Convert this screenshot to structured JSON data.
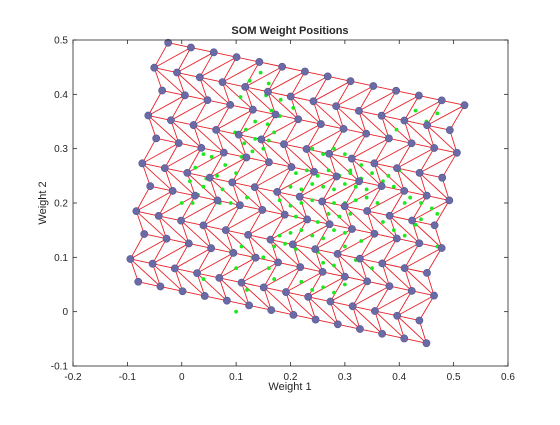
{
  "chart_data": {
    "type": "scatter",
    "title": "SOM Weight Positions",
    "xlabel": "Weight 1",
    "ylabel": "Weight 2",
    "xlim": [
      -0.2,
      0.6
    ],
    "ylim": [
      -0.1,
      0.5
    ],
    "xticks": [
      "-0.2",
      "-0.1",
      "0",
      "0.1",
      "0.2",
      "0.3",
      "0.4",
      "0.5",
      "0.6"
    ],
    "yticks": [
      "-0.1",
      "0",
      "0.1",
      "0.2",
      "0.3",
      "0.4",
      "0.5"
    ],
    "grid": false,
    "legend": "none",
    "neuron_grid": {
      "rows": 11,
      "cols": 14,
      "hex_offset_odd_rows": true,
      "corner_top_left": [
        -0.025,
        0.495
      ],
      "corner_top_right": [
        0.52,
        0.38
      ],
      "corner_bottom_left": [
        -0.08,
        0.055
      ],
      "corner_bottom_right": [
        0.45,
        -0.058
      ],
      "row_offset": [
        -0.02,
        -0.002
      ]
    },
    "series": [
      {
        "points": [
          [
            0.108,
            0.395
          ],
          [
            0.125,
            0.425
          ],
          [
            0.145,
            0.44
          ],
          [
            0.16,
            0.42
          ],
          [
            0.155,
            0.398
          ],
          [
            0.182,
            0.39
          ],
          [
            0.205,
            0.375
          ],
          [
            0.165,
            0.37
          ],
          [
            0.098,
            0.33
          ],
          [
            0.118,
            0.335
          ],
          [
            0.135,
            0.318
          ],
          [
            0.115,
            0.31
          ],
          [
            0.16,
            0.315
          ],
          [
            0.158,
            0.345
          ],
          [
            0.17,
            0.33
          ],
          [
            0.18,
            0.36
          ],
          [
            0.135,
            0.35
          ],
          [
            0.11,
            0.285
          ],
          [
            0.13,
            0.295
          ],
          [
            0.15,
            0.3
          ],
          [
            0.1,
            0.255
          ],
          [
            0.08,
            0.27
          ],
          [
            0.055,
            0.285
          ],
          [
            0.04,
            0.29
          ],
          [
            0.025,
            0.265
          ],
          [
            0.045,
            0.245
          ],
          [
            0.065,
            0.25
          ],
          [
            0.04,
            0.23
          ],
          [
            0.015,
            0.24
          ],
          [
            0.03,
            0.215
          ],
          [
            0.075,
            0.225
          ],
          [
            0.0,
            0.2
          ],
          [
            0.02,
            0.2
          ],
          [
            0.07,
            0.2
          ],
          [
            0.09,
            0.2
          ],
          [
            0.12,
            0.21
          ],
          [
            0.18,
            0.205
          ],
          [
            0.2,
            0.195
          ],
          [
            0.22,
            0.2
          ],
          [
            0.24,
            0.205
          ],
          [
            0.26,
            0.2
          ],
          [
            0.28,
            0.2
          ],
          [
            0.3,
            0.2
          ],
          [
            0.32,
            0.205
          ],
          [
            0.34,
            0.21
          ],
          [
            0.19,
            0.18
          ],
          [
            0.21,
            0.175
          ],
          [
            0.23,
            0.17
          ],
          [
            0.25,
            0.165
          ],
          [
            0.27,
            0.18
          ],
          [
            0.29,
            0.175
          ],
          [
            0.31,
            0.18
          ],
          [
            0.2,
            0.23
          ],
          [
            0.22,
            0.225
          ],
          [
            0.24,
            0.235
          ],
          [
            0.26,
            0.23
          ],
          [
            0.28,
            0.225
          ],
          [
            0.3,
            0.235
          ],
          [
            0.32,
            0.23
          ],
          [
            0.34,
            0.225
          ],
          [
            0.21,
            0.255
          ],
          [
            0.23,
            0.26
          ],
          [
            0.25,
            0.25
          ],
          [
            0.27,
            0.26
          ],
          [
            0.29,
            0.25
          ],
          [
            0.31,
            0.255
          ],
          [
            0.33,
            0.245
          ],
          [
            0.35,
            0.255
          ],
          [
            0.18,
            0.14
          ],
          [
            0.2,
            0.145
          ],
          [
            0.22,
            0.15
          ],
          [
            0.24,
            0.14
          ],
          [
            0.26,
            0.135
          ],
          [
            0.28,
            0.15
          ],
          [
            0.3,
            0.145
          ],
          [
            0.17,
            0.12
          ],
          [
            0.19,
            0.125
          ],
          [
            0.21,
            0.115
          ],
          [
            0.25,
            0.11
          ],
          [
            0.15,
            0.1
          ],
          [
            0.16,
            0.08
          ],
          [
            0.17,
            0.06
          ],
          [
            0.09,
            0.11
          ],
          [
            0.11,
            0.12
          ],
          [
            0.13,
            0.1
          ],
          [
            0.1,
            0.08
          ],
          [
            0.04,
            0.06
          ],
          [
            0.1,
            0.0
          ],
          [
            0.12,
            0.04
          ],
          [
            0.24,
            0.3
          ],
          [
            0.26,
            0.29
          ],
          [
            0.28,
            0.3
          ],
          [
            0.3,
            0.29
          ],
          [
            0.33,
            0.27
          ],
          [
            0.31,
            0.26
          ],
          [
            0.36,
            0.2
          ],
          [
            0.37,
            0.24
          ],
          [
            0.38,
            0.25
          ],
          [
            0.39,
            0.23
          ],
          [
            0.4,
            0.26
          ],
          [
            0.41,
            0.2
          ],
          [
            0.42,
            0.21
          ],
          [
            0.44,
            0.2
          ],
          [
            0.45,
            0.21
          ],
          [
            0.46,
            0.19
          ],
          [
            0.44,
            0.17
          ],
          [
            0.47,
            0.18
          ],
          [
            0.47,
            0.12
          ],
          [
            0.37,
            0.165
          ],
          [
            0.39,
            0.15
          ],
          [
            0.41,
            0.14
          ],
          [
            0.43,
            0.16
          ],
          [
            0.395,
            0.335
          ],
          [
            0.43,
            0.37
          ],
          [
            0.45,
            0.35
          ],
          [
            0.47,
            0.365
          ],
          [
            0.22,
            0.055
          ],
          [
            0.24,
            0.04
          ],
          [
            0.26,
            0.045
          ],
          [
            0.28,
            0.035
          ],
          [
            0.3,
            0.05
          ],
          [
            0.26,
            0.09
          ],
          [
            0.28,
            0.085
          ],
          [
            0.32,
            0.095
          ],
          [
            0.35,
            0.08
          ],
          [
            0.3,
            0.12
          ],
          [
            0.33,
            0.13
          ]
        ]
      }
    ]
  }
}
